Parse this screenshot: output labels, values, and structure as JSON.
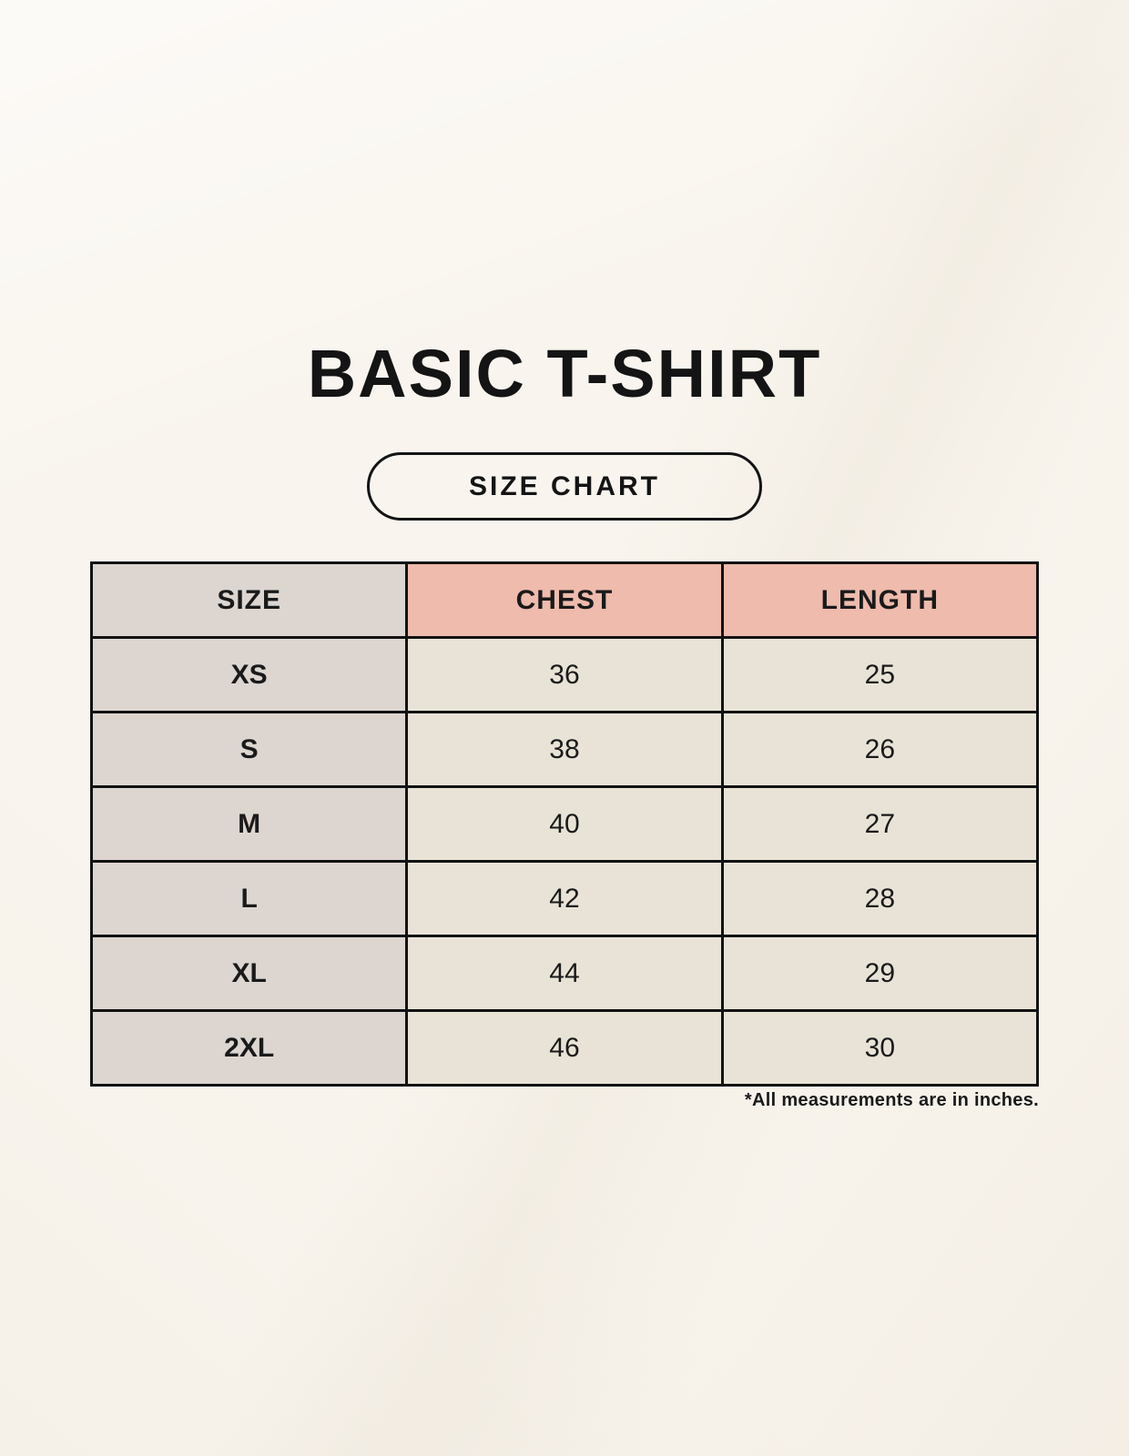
{
  "header": {
    "title": "BASIC T-SHIRT",
    "badge_label": "SIZE CHART"
  },
  "table": {
    "columns": [
      "SIZE",
      "CHEST",
      "LENGTH"
    ],
    "rows": [
      {
        "size": "XS",
        "chest": "36",
        "length": "25"
      },
      {
        "size": "S",
        "chest": "38",
        "length": "26"
      },
      {
        "size": "M",
        "chest": "40",
        "length": "27"
      },
      {
        "size": "L",
        "chest": "42",
        "length": "28"
      },
      {
        "size": "XL",
        "chest": "44",
        "length": "29"
      },
      {
        "size": "2XL",
        "chest": "46",
        "length": "30"
      }
    ]
  },
  "footnote": "*All measurements are in inches.",
  "chart_data": {
    "type": "table",
    "title": "BASIC T-SHIRT",
    "subtitle": "SIZE CHART",
    "columns": [
      "SIZE",
      "CHEST",
      "LENGTH"
    ],
    "rows": [
      [
        "XS",
        36,
        25
      ],
      [
        "S",
        38,
        26
      ],
      [
        "M",
        40,
        27
      ],
      [
        "L",
        42,
        28
      ],
      [
        "XL",
        44,
        29
      ],
      [
        "2XL",
        46,
        30
      ]
    ],
    "note": "*All measurements are in inches.",
    "units": "inches"
  },
  "colors": {
    "background": "#f9f5ee",
    "accent_header": "#eebbac",
    "size_column": "#ddd6d0",
    "value_cell": "#e9e3d7",
    "border": "#121212",
    "text": "#1a1a1a"
  }
}
